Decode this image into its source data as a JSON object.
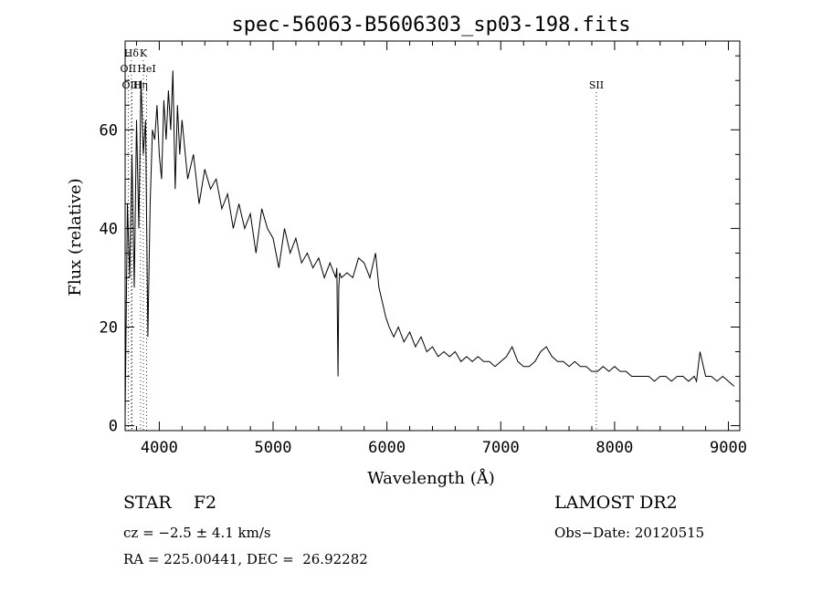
{
  "chart_data": {
    "type": "line",
    "title": "spec-56063-B5606303_sp03-198.fits",
    "xlabel": "Wavelength (Å)",
    "ylabel": "Flux (relative)",
    "xlim": [
      3700,
      9100
    ],
    "ylim": [
      -1,
      78
    ],
    "xticks": [
      4000,
      5000,
      6000,
      7000,
      8000,
      9000
    ],
    "yticks": [
      0,
      20,
      40,
      60
    ],
    "grid": false,
    "series": [
      {
        "color": "#000000",
        "x": [
          3700,
          3720,
          3740,
          3760,
          3780,
          3800,
          3820,
          3840,
          3860,
          3880,
          3900,
          3920,
          3940,
          3960,
          3980,
          4000,
          4020,
          4040,
          4060,
          4080,
          4100,
          4120,
          4140,
          4160,
          4180,
          4200,
          4250,
          4300,
          4350,
          4400,
          4450,
          4500,
          4550,
          4600,
          4650,
          4700,
          4750,
          4800,
          4850,
          4900,
          4950,
          5000,
          5050,
          5100,
          5150,
          5200,
          5250,
          5300,
          5350,
          5400,
          5450,
          5500,
          5550,
          5560,
          5570,
          5577,
          5585,
          5600,
          5650,
          5700,
          5750,
          5800,
          5850,
          5900,
          5930,
          5960,
          5990,
          6020,
          6060,
          6100,
          6150,
          6200,
          6250,
          6300,
          6350,
          6400,
          6450,
          6500,
          6550,
          6600,
          6650,
          6700,
          6750,
          6800,
          6850,
          6900,
          6950,
          7000,
          7050,
          7100,
          7150,
          7200,
          7250,
          7300,
          7350,
          7400,
          7450,
          7500,
          7550,
          7600,
          7650,
          7700,
          7750,
          7800,
          7850,
          7900,
          7950,
          8000,
          8050,
          8100,
          8150,
          8200,
          8250,
          8300,
          8350,
          8400,
          8450,
          8500,
          8550,
          8600,
          8650,
          8700,
          8720,
          8750,
          8800,
          8850,
          8900,
          8950,
          9000,
          9050
        ],
        "y": [
          2,
          45,
          30,
          55,
          28,
          62,
          40,
          70,
          55,
          62,
          18,
          45,
          60,
          58,
          65,
          55,
          50,
          66,
          58,
          68,
          60,
          72,
          48,
          65,
          55,
          62,
          50,
          55,
          45,
          52,
          48,
          50,
          44,
          47,
          40,
          45,
          40,
          43,
          35,
          44,
          40,
          38,
          32,
          40,
          35,
          38,
          33,
          35,
          32,
          34,
          30,
          33,
          30,
          32,
          10,
          28,
          31,
          30,
          31,
          30,
          34,
          33,
          30,
          35,
          28,
          25,
          22,
          20,
          18,
          20,
          17,
          19,
          16,
          18,
          15,
          16,
          14,
          15,
          14,
          15,
          13,
          14,
          13,
          14,
          13,
          13,
          12,
          13,
          14,
          16,
          13,
          12,
          12,
          13,
          15,
          16,
          14,
          13,
          13,
          12,
          13,
          12,
          12,
          11,
          11,
          12,
          11,
          12,
          11,
          11,
          10,
          10,
          10,
          10,
          9,
          10,
          10,
          9,
          10,
          10,
          9,
          10,
          9,
          15,
          10,
          10,
          9,
          10,
          9,
          8
        ]
      }
    ],
    "line_markers": [
      {
        "label": "Hδ",
        "wavelength": 3755,
        "row": 0
      },
      {
        "label": "K",
        "wavelength": 3860,
        "row": 0
      },
      {
        "label": "OII",
        "wavelength": 3727,
        "row": 1
      },
      {
        "label": "HeI",
        "wavelength": 3889,
        "row": 1
      },
      {
        "label": "OIII",
        "wavelength": 3760,
        "row": 2
      },
      {
        "label": "Hη",
        "wavelength": 3835,
        "row": 2
      },
      {
        "label": "SII",
        "wavelength": 7840,
        "row": 2
      }
    ]
  },
  "info": {
    "class_line": "STAR    F2",
    "survey": "LAMOST DR2",
    "cz": "cz = −2.5 ± 4.1 km/s",
    "obs_date": "Obs−Date: 20120515",
    "coords": "RA = 225.00441, DEC =  26.92282"
  }
}
